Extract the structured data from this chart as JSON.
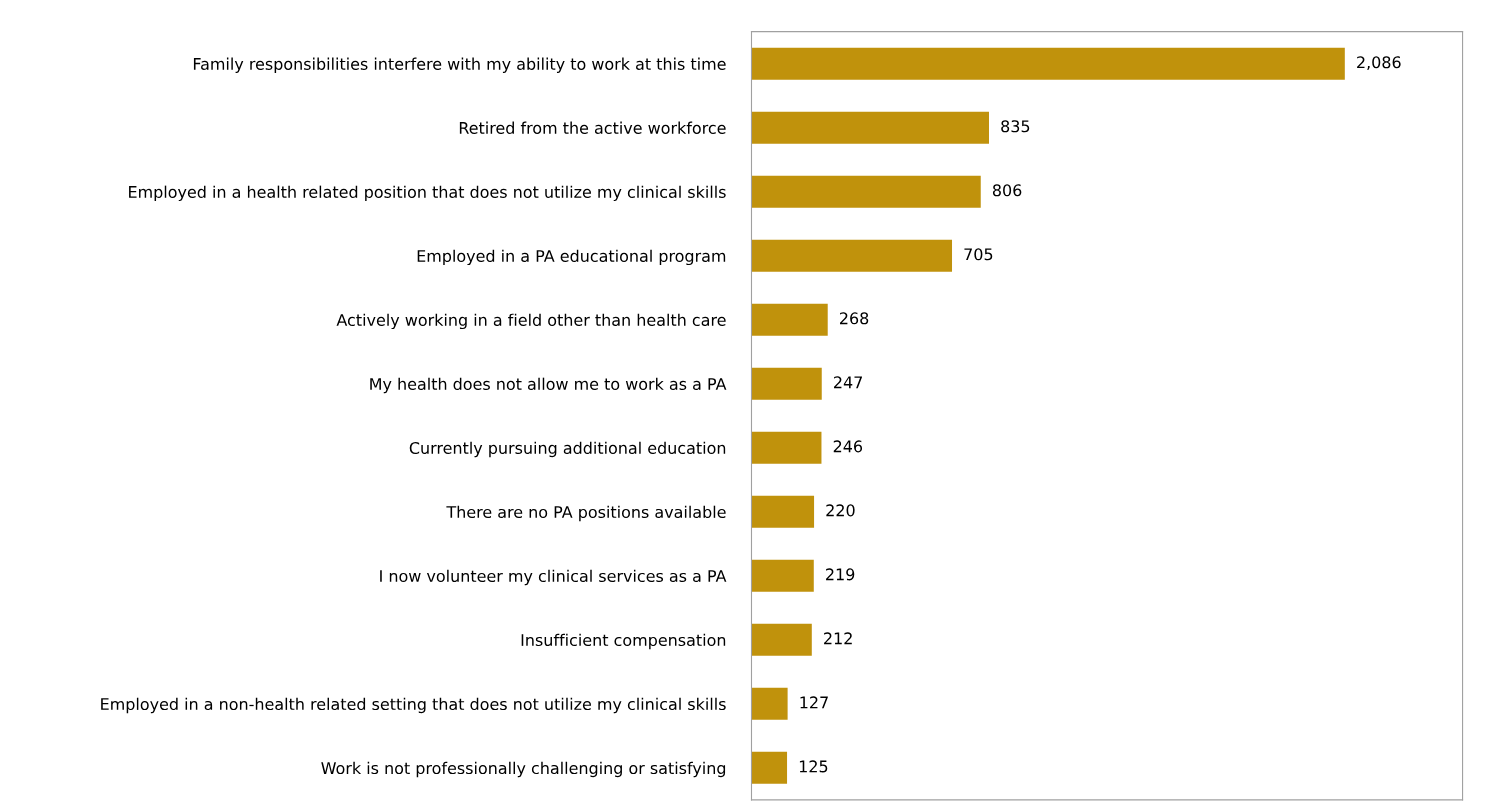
{
  "chart_data": {
    "type": "bar",
    "orientation": "horizontal",
    "categories": [
      "Family responsibilities interfere with my ability to work at this time",
      "Retired from the active workforce",
      "Employed in a health related position that does not utilize my clinical skills",
      "Employed in a PA educational program",
      "Actively working in a field other than health care",
      "My health does not allow me to work as a PA",
      "Currently pursuing additional education",
      "There are no PA positions available",
      "I now volunteer my clinical services as a PA",
      "Insufficient compensation",
      "Employed in a non-health related setting that does not utilize my clinical skills",
      "Work is not professionally challenging or satisfying"
    ],
    "values": [
      2086,
      835,
      806,
      705,
      268,
      247,
      246,
      220,
      219,
      212,
      127,
      125
    ],
    "value_labels": [
      "2,086",
      "835",
      "806",
      "705",
      "268",
      "247",
      "246",
      "220",
      "219",
      "212",
      "127",
      "125"
    ],
    "color": "#c0920c",
    "xlim": [
      0,
      2500
    ],
    "grid": false,
    "legend": false
  }
}
